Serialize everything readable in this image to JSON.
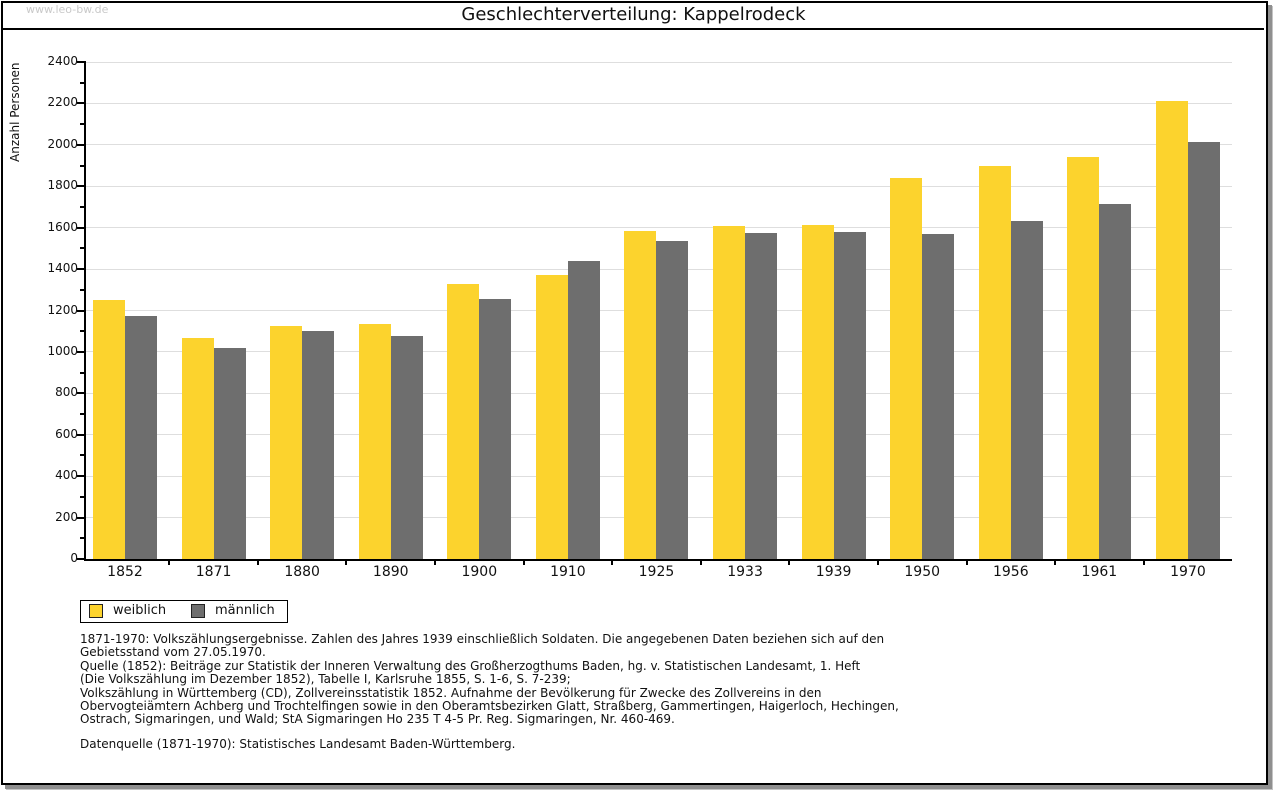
{
  "watermark": "www.leo-bw.de",
  "title": "Geschlechterverteilung: Kappelrodeck",
  "chart_data": {
    "type": "bar",
    "title": "Geschlechterverteilung: Kappelrodeck",
    "ylabel": "Anzahl Personen",
    "xlabel": "",
    "ylim": [
      0,
      2400
    ],
    "ytick_step": 200,
    "grid": true,
    "legend_position": "bottom-left",
    "categories": [
      "1852",
      "1871",
      "1880",
      "1890",
      "1900",
      "1910",
      "1925",
      "1933",
      "1939",
      "1950",
      "1956",
      "1961",
      "1970"
    ],
    "series": [
      {
        "name": "weiblich",
        "color": "#fcd32d",
        "values": [
          1250,
          1065,
          1125,
          1135,
          1330,
          1370,
          1585,
          1610,
          1615,
          1840,
          1900,
          1940,
          2210
        ]
      },
      {
        "name": "männlich",
        "color": "#6e6e6e",
        "values": [
          1175,
          1020,
          1100,
          1075,
          1255,
          1440,
          1535,
          1575,
          1580,
          1570,
          1630,
          1715,
          2015
        ]
      }
    ]
  },
  "colors": {
    "weiblich": "#fcd32d",
    "maennlich": "#6e6e6e",
    "gridline": "#dedede",
    "watermark": "#c9c9c9"
  },
  "footnote_lines": [
    "1871-1970: Volkszählungsergebnisse. Zahlen des Jahres 1939 einschließlich Soldaten. Die angegebenen Daten beziehen sich auf den",
    "Gebietsstand vom 27.05.1970.",
    "Quelle (1852): Beiträge zur Statistik der Inneren Verwaltung des Großherzogthums Baden, hg. v. Statistischen Landesamt, 1. Heft",
    "(Die Volkszählung im Dezember 1852), Tabelle I, Karlsruhe 1855, S. 1-6, S. 7-239;",
    "Volkszählung in Württemberg (CD), Zollvereinsstatistik 1852. Aufnahme der Bevölkerung für Zwecke des Zollvereins in den",
    "Obervogteiämtern Achberg und Trochtelfingen sowie in den Oberamtsbezirken Glatt, Straßberg, Gammertingen, Haigerloch, Hechingen,",
    "Ostrach, Sigmaringen, und Wald; StA Sigmaringen Ho 235 T 4-5 Pr. Reg. Sigmaringen, Nr. 460-469."
  ],
  "datasource": "Datenquelle (1871-1970): Statistisches Landesamt Baden-Württemberg."
}
